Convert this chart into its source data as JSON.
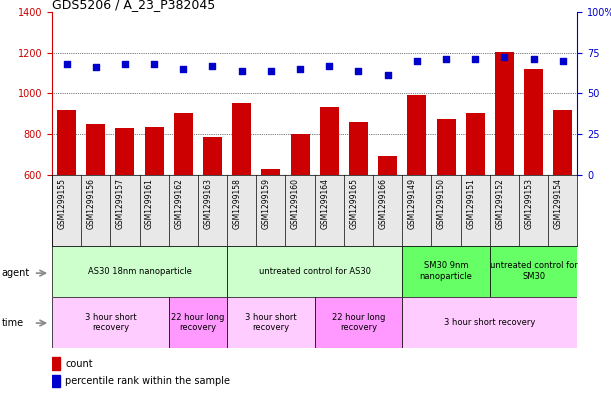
{
  "title": "GDS5206 / A_23_P382045",
  "categories": [
    "GSM1299155",
    "GSM1299156",
    "GSM1299157",
    "GSM1299161",
    "GSM1299162",
    "GSM1299163",
    "GSM1299158",
    "GSM1299159",
    "GSM1299160",
    "GSM1299164",
    "GSM1299165",
    "GSM1299166",
    "GSM1299149",
    "GSM1299150",
    "GSM1299151",
    "GSM1299152",
    "GSM1299153",
    "GSM1299154"
  ],
  "bar_values": [
    920,
    848,
    828,
    835,
    902,
    785,
    955,
    630,
    800,
    935,
    858,
    693,
    990,
    872,
    905,
    1205,
    1120,
    920
  ],
  "dot_values": [
    68,
    66,
    68,
    68,
    65,
    67,
    64,
    64,
    65,
    67,
    64,
    61,
    70,
    71,
    71,
    72,
    71,
    70
  ],
  "bar_color": "#cc0000",
  "dot_color": "#0000cc",
  "ylim_left": [
    600,
    1400
  ],
  "ylim_right": [
    0,
    100
  ],
  "yticks_left": [
    600,
    800,
    1000,
    1200,
    1400
  ],
  "yticks_right": [
    0,
    25,
    50,
    75,
    100
  ],
  "ytick_labels_right": [
    "0",
    "25",
    "50",
    "75",
    "100%"
  ],
  "grid_values": [
    800,
    1000,
    1200
  ],
  "agent_groups": [
    {
      "label": "AS30 18nm nanoparticle",
      "start": 0,
      "end": 6,
      "color": "#ccffcc"
    },
    {
      "label": "untreated control for AS30",
      "start": 6,
      "end": 12,
      "color": "#ccffcc"
    },
    {
      "label": "SM30 9nm\nnanoparticle",
      "start": 12,
      "end": 15,
      "color": "#66ff66"
    },
    {
      "label": "untreated control for\nSM30",
      "start": 15,
      "end": 18,
      "color": "#66ff66"
    }
  ],
  "time_groups": [
    {
      "label": "3 hour short\nrecovery",
      "start": 0,
      "end": 4,
      "color": "#ffccff"
    },
    {
      "label": "22 hour long\nrecovery",
      "start": 4,
      "end": 6,
      "color": "#ff99ff"
    },
    {
      "label": "3 hour short\nrecovery",
      "start": 6,
      "end": 9,
      "color": "#ffccff"
    },
    {
      "label": "22 hour long\nrecovery",
      "start": 9,
      "end": 12,
      "color": "#ff99ff"
    },
    {
      "label": "3 hour short recovery",
      "start": 12,
      "end": 18,
      "color": "#ffccff"
    }
  ],
  "legend_items": [
    {
      "label": "count",
      "color": "#cc0000"
    },
    {
      "label": "percentile rank within the sample",
      "color": "#0000cc"
    }
  ],
  "fig_bg": "#ffffff",
  "chart_bg": "#ffffff"
}
